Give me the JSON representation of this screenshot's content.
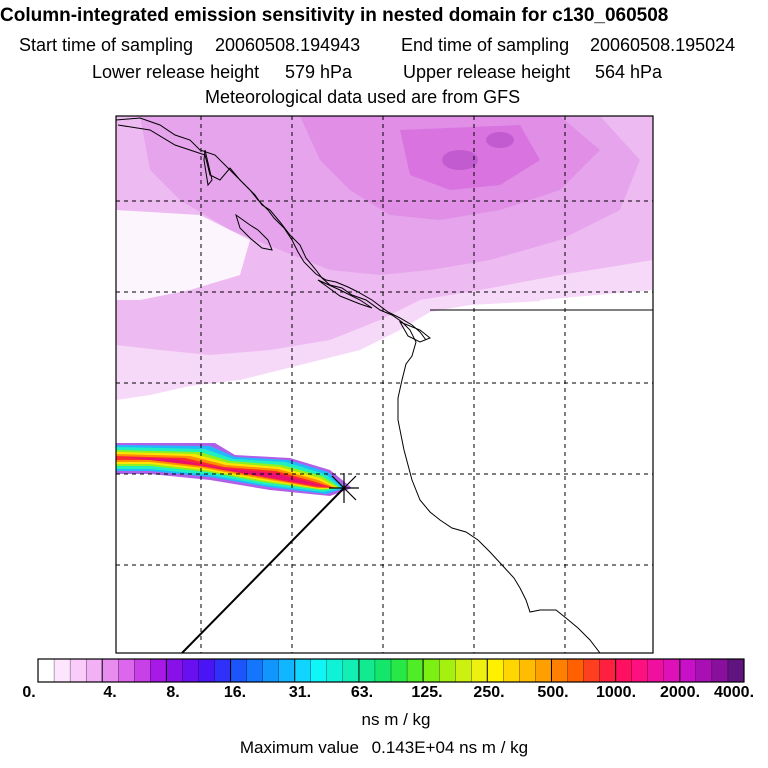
{
  "header": {
    "title": "Column-integrated emission sensitivity in nested domain for c130_060508",
    "start_label": "Start time of sampling",
    "start_value": "20060508.194943",
    "end_label": "End time of sampling",
    "end_value": "20060508.195024",
    "lower_label": "Lower release height",
    "lower_value": "579 hPa",
    "upper_label": "Upper release height",
    "upper_value": "564 hPa",
    "met_note": "Meteorological data used are from GFS"
  },
  "colorbar": {
    "labels": [
      "0.",
      "4.",
      "8.",
      "16.",
      "31.",
      "63.",
      "125.",
      "250.",
      "500.",
      "1000.",
      "2000.",
      "4000."
    ],
    "colors": [
      "#ffffff",
      "#fde6fd",
      "#f9ccf9",
      "#f2b0f5",
      "#e88cf0",
      "#dc66ec",
      "#c840e8",
      "#a818e6",
      "#8a10ea",
      "#6a10f0",
      "#4b14f4",
      "#3030f8",
      "#1c55fa",
      "#1476fc",
      "#1096fe",
      "#10b6ff",
      "#10d6ff",
      "#10f6f6",
      "#10f2d6",
      "#12eeb4",
      "#12ea90",
      "#14e66c",
      "#28e848",
      "#50ec28",
      "#7cf012",
      "#a4f010",
      "#ccf010",
      "#eef010",
      "#fff000",
      "#ffd600",
      "#ffbc00",
      "#ffa000",
      "#ff8000",
      "#ff6000",
      "#ff4020",
      "#ff2040",
      "#ff1060",
      "#ff1080",
      "#f010a0",
      "#e010b8",
      "#c810c8",
      "#a810b4",
      "#88109c",
      "#601480"
    ],
    "units": "ns m / kg"
  },
  "footer": {
    "max_label": "Maximum value",
    "max_value": "0.143E+04",
    "max_units": "ns m / kg"
  }
}
